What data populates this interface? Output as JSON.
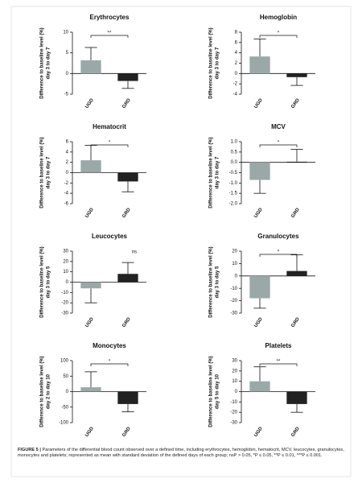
{
  "caption_label": "FIGURE 5 |",
  "caption": "Parameters of the differential blood count observed over a defined time, including erythrocytes, hemoglobin, hematocrit, MCV, leucocytes, granulocytes, monocytes and platelets; represented as mean with standard deviation of the defined days of each group; nsP > 0.05, *P ≤ 0.05, **P ≤ 0.01, ***P ≤ 0.001.",
  "chart_data": [
    {
      "type": "bar",
      "title": "Erythrocytes",
      "ylabel": [
        "Difference to baseline level (%)",
        "day 3 to day 7"
      ],
      "categories": [
        "UGD",
        "GRD"
      ],
      "values": [
        3.2,
        -1.8
      ],
      "errors": [
        3.1,
        1.8
      ],
      "colors": [
        "#9aa8a8",
        "#222222"
      ],
      "ylim": [
        -5,
        10
      ],
      "yticks": [
        -5,
        0,
        5,
        10
      ],
      "significance": "**",
      "bracket": true
    },
    {
      "type": "bar",
      "title": "Hemoglobin",
      "ylabel": [
        "Difference to baseline level (%)",
        "day 3 to day 7"
      ],
      "categories": [
        "UGD",
        "GRD"
      ],
      "values": [
        3.3,
        -0.7
      ],
      "errors": [
        3.4,
        1.6
      ],
      "colors": [
        "#9aa8a8",
        "#222222"
      ],
      "ylim": [
        -4,
        8
      ],
      "yticks": [
        -4,
        -2,
        0,
        2,
        4,
        6,
        8
      ],
      "significance": "*",
      "bracket": true
    },
    {
      "type": "bar",
      "title": "Hematocrit",
      "ylabel": [
        "Difference to baseline level (%)",
        "day 3 to day 7"
      ],
      "categories": [
        "UGD",
        "GRD"
      ],
      "values": [
        2.4,
        -1.7
      ],
      "errors": [
        2.9,
        2.0
      ],
      "colors": [
        "#9aa8a8",
        "#222222"
      ],
      "ylim": [
        -6,
        6
      ],
      "yticks": [
        -6,
        -4,
        -2,
        0,
        2,
        4,
        6
      ],
      "significance": "*",
      "bracket": true
    },
    {
      "type": "bar",
      "title": "MCV",
      "ylabel": [
        "Difference to baseline level (%)",
        "day 3 to day 7"
      ],
      "categories": [
        "UGD",
        "GRD"
      ],
      "values": [
        -0.85,
        0.03
      ],
      "errors": [
        0.65,
        0.6
      ],
      "colors": [
        "#9aa8a8",
        "#222222"
      ],
      "ylim": [
        -2,
        1
      ],
      "yticks": [
        {
          "value": -2,
          "label": "-2.0"
        },
        {
          "value": -1.5,
          "label": "-1.5"
        },
        {
          "value": -1,
          "label": "-1.0"
        },
        {
          "value": -0.5,
          "label": "-0.5"
        },
        {
          "value": 0,
          "label": "0.0"
        },
        {
          "value": 0.5,
          "label": "0.5"
        },
        {
          "value": 1,
          "label": "1.0"
        }
      ],
      "significance": "*",
      "bracket": true
    },
    {
      "type": "bar",
      "title": "Leucocytes",
      "ylabel": [
        "Difference to baseline level (%)",
        "day 3 to day 5"
      ],
      "categories": [
        "UGD",
        "GRD"
      ],
      "values": [
        -6,
        8
      ],
      "errors": [
        14,
        11
      ],
      "colors": [
        "#9aa8a8",
        "#222222"
      ],
      "ylim": [
        -30,
        30
      ],
      "yticks": [
        -30,
        -20,
        -10,
        0,
        10,
        20,
        30
      ],
      "significance": "ns",
      "bracket": false
    },
    {
      "type": "bar",
      "title": "Granulocytes",
      "ylabel": [
        "Difference to baseline level (%)",
        "day 3 to day 5"
      ],
      "categories": [
        "UGD",
        "GRD"
      ],
      "values": [
        -18,
        4
      ],
      "errors": [
        8,
        13
      ],
      "colors": [
        "#9aa8a8",
        "#222222"
      ],
      "ylim": [
        -30,
        20
      ],
      "yticks": [
        -30,
        -20,
        -10,
        0,
        10,
        20
      ],
      "significance": "*",
      "bracket": true
    },
    {
      "type": "bar",
      "title": "Monocytes",
      "ylabel": [
        "Difference to baseline level (%)",
        "day 2 to day 10"
      ],
      "categories": [
        "UGD",
        "GRD"
      ],
      "values": [
        14,
        -40
      ],
      "errors": [
        50,
        25
      ],
      "colors": [
        "#9aa8a8",
        "#222222"
      ],
      "ylim": [
        -100,
        100
      ],
      "yticks": [
        -100,
        -50,
        0,
        50,
        100
      ],
      "significance": "*",
      "bracket": true
    },
    {
      "type": "bar",
      "title": "Platelets",
      "ylabel": [
        "Difference to baseline level (%)",
        "day 5 to day 10"
      ],
      "categories": [
        "UGD",
        "GRD"
      ],
      "values": [
        10,
        -12
      ],
      "errors": [
        14,
        8
      ],
      "colors": [
        "#9aa8a8",
        "#222222"
      ],
      "ylim": [
        -30,
        30
      ],
      "yticks": [
        -30,
        -20,
        -10,
        0,
        10,
        20,
        30
      ],
      "significance": "**",
      "bracket": true
    }
  ]
}
